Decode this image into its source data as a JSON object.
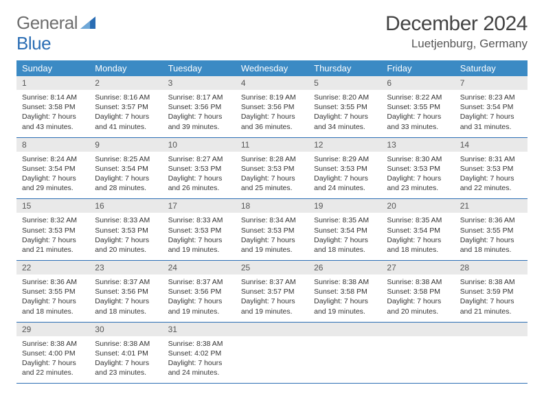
{
  "brand": {
    "part1": "General",
    "part2": "Blue"
  },
  "title": "December 2024",
  "location": "Luetjenburg, Germany",
  "colors": {
    "header_bg": "#3b8ac4",
    "border": "#2a6db4",
    "daynum_bg": "#e9e9e9",
    "brand_gray": "#6e6e6e",
    "brand_blue": "#2a6db4"
  },
  "weekdays": [
    "Sunday",
    "Monday",
    "Tuesday",
    "Wednesday",
    "Thursday",
    "Friday",
    "Saturday"
  ],
  "weeks": [
    [
      {
        "n": "1",
        "sr": "8:14 AM",
        "ss": "3:58 PM",
        "dl": "7 hours and 43 minutes."
      },
      {
        "n": "2",
        "sr": "8:16 AM",
        "ss": "3:57 PM",
        "dl": "7 hours and 41 minutes."
      },
      {
        "n": "3",
        "sr": "8:17 AM",
        "ss": "3:56 PM",
        "dl": "7 hours and 39 minutes."
      },
      {
        "n": "4",
        "sr": "8:19 AM",
        "ss": "3:56 PM",
        "dl": "7 hours and 36 minutes."
      },
      {
        "n": "5",
        "sr": "8:20 AM",
        "ss": "3:55 PM",
        "dl": "7 hours and 34 minutes."
      },
      {
        "n": "6",
        "sr": "8:22 AM",
        "ss": "3:55 PM",
        "dl": "7 hours and 33 minutes."
      },
      {
        "n": "7",
        "sr": "8:23 AM",
        "ss": "3:54 PM",
        "dl": "7 hours and 31 minutes."
      }
    ],
    [
      {
        "n": "8",
        "sr": "8:24 AM",
        "ss": "3:54 PM",
        "dl": "7 hours and 29 minutes."
      },
      {
        "n": "9",
        "sr": "8:25 AM",
        "ss": "3:54 PM",
        "dl": "7 hours and 28 minutes."
      },
      {
        "n": "10",
        "sr": "8:27 AM",
        "ss": "3:53 PM",
        "dl": "7 hours and 26 minutes."
      },
      {
        "n": "11",
        "sr": "8:28 AM",
        "ss": "3:53 PM",
        "dl": "7 hours and 25 minutes."
      },
      {
        "n": "12",
        "sr": "8:29 AM",
        "ss": "3:53 PM",
        "dl": "7 hours and 24 minutes."
      },
      {
        "n": "13",
        "sr": "8:30 AM",
        "ss": "3:53 PM",
        "dl": "7 hours and 23 minutes."
      },
      {
        "n": "14",
        "sr": "8:31 AM",
        "ss": "3:53 PM",
        "dl": "7 hours and 22 minutes."
      }
    ],
    [
      {
        "n": "15",
        "sr": "8:32 AM",
        "ss": "3:53 PM",
        "dl": "7 hours and 21 minutes."
      },
      {
        "n": "16",
        "sr": "8:33 AM",
        "ss": "3:53 PM",
        "dl": "7 hours and 20 minutes."
      },
      {
        "n": "17",
        "sr": "8:33 AM",
        "ss": "3:53 PM",
        "dl": "7 hours and 19 minutes."
      },
      {
        "n": "18",
        "sr": "8:34 AM",
        "ss": "3:53 PM",
        "dl": "7 hours and 19 minutes."
      },
      {
        "n": "19",
        "sr": "8:35 AM",
        "ss": "3:54 PM",
        "dl": "7 hours and 18 minutes."
      },
      {
        "n": "20",
        "sr": "8:35 AM",
        "ss": "3:54 PM",
        "dl": "7 hours and 18 minutes."
      },
      {
        "n": "21",
        "sr": "8:36 AM",
        "ss": "3:55 PM",
        "dl": "7 hours and 18 minutes."
      }
    ],
    [
      {
        "n": "22",
        "sr": "8:36 AM",
        "ss": "3:55 PM",
        "dl": "7 hours and 18 minutes."
      },
      {
        "n": "23",
        "sr": "8:37 AM",
        "ss": "3:56 PM",
        "dl": "7 hours and 18 minutes."
      },
      {
        "n": "24",
        "sr": "8:37 AM",
        "ss": "3:56 PM",
        "dl": "7 hours and 19 minutes."
      },
      {
        "n": "25",
        "sr": "8:37 AM",
        "ss": "3:57 PM",
        "dl": "7 hours and 19 minutes."
      },
      {
        "n": "26",
        "sr": "8:38 AM",
        "ss": "3:58 PM",
        "dl": "7 hours and 19 minutes."
      },
      {
        "n": "27",
        "sr": "8:38 AM",
        "ss": "3:58 PM",
        "dl": "7 hours and 20 minutes."
      },
      {
        "n": "28",
        "sr": "8:38 AM",
        "ss": "3:59 PM",
        "dl": "7 hours and 21 minutes."
      }
    ],
    [
      {
        "n": "29",
        "sr": "8:38 AM",
        "ss": "4:00 PM",
        "dl": "7 hours and 22 minutes."
      },
      {
        "n": "30",
        "sr": "8:38 AM",
        "ss": "4:01 PM",
        "dl": "7 hours and 23 minutes."
      },
      {
        "n": "31",
        "sr": "8:38 AM",
        "ss": "4:02 PM",
        "dl": "7 hours and 24 minutes."
      },
      null,
      null,
      null,
      null
    ]
  ],
  "labels": {
    "sunrise": "Sunrise:",
    "sunset": "Sunset:",
    "daylight": "Daylight:"
  }
}
